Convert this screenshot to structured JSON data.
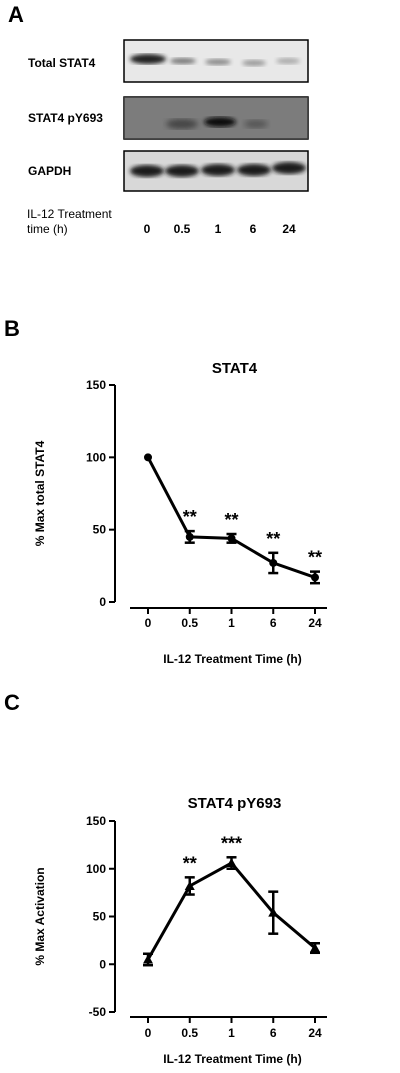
{
  "panelA": {
    "letter": "A",
    "blot_labels": [
      "Total STAT4",
      "STAT4 pY693",
      "GAPDH"
    ],
    "treatment_label_line1": "IL-12 Treatment",
    "treatment_label_line2": "time (h)",
    "lanes": [
      "0",
      "0.5",
      "1",
      "6",
      "24"
    ]
  },
  "panelB": {
    "letter": "B"
  },
  "panelC": {
    "letter": "C"
  },
  "chart_data": [
    {
      "type": "line",
      "title": "STAT4",
      "xlabel": "IL-12 Treatment Time (h)",
      "ylabel": "% Max total  STAT4",
      "categories": [
        "0",
        "0.5",
        "1",
        "6",
        "24"
      ],
      "values": [
        100,
        45,
        44,
        27,
        17
      ],
      "errors": [
        0,
        4,
        3,
        7,
        4
      ],
      "significance": [
        "",
        "**",
        "**",
        "**",
        "**"
      ],
      "yticks": [
        0,
        50,
        100,
        150
      ],
      "ylim": [
        0,
        150
      ],
      "marker": "circle"
    },
    {
      "type": "line",
      "title": "STAT4 pY693",
      "xlabel": "IL-12 Treatment Time (h)",
      "ylabel": "% Max Activation",
      "categories": [
        "0",
        "0.5",
        "1",
        "6",
        "24"
      ],
      "values": [
        5,
        82,
        106,
        54,
        17
      ],
      "errors": [
        6,
        9,
        6,
        22,
        5
      ],
      "significance": [
        "",
        "**",
        "***",
        "",
        ""
      ],
      "yticks": [
        -50,
        0,
        50,
        100,
        150
      ],
      "ylim": [
        -50,
        150
      ],
      "marker": "triangle"
    }
  ]
}
